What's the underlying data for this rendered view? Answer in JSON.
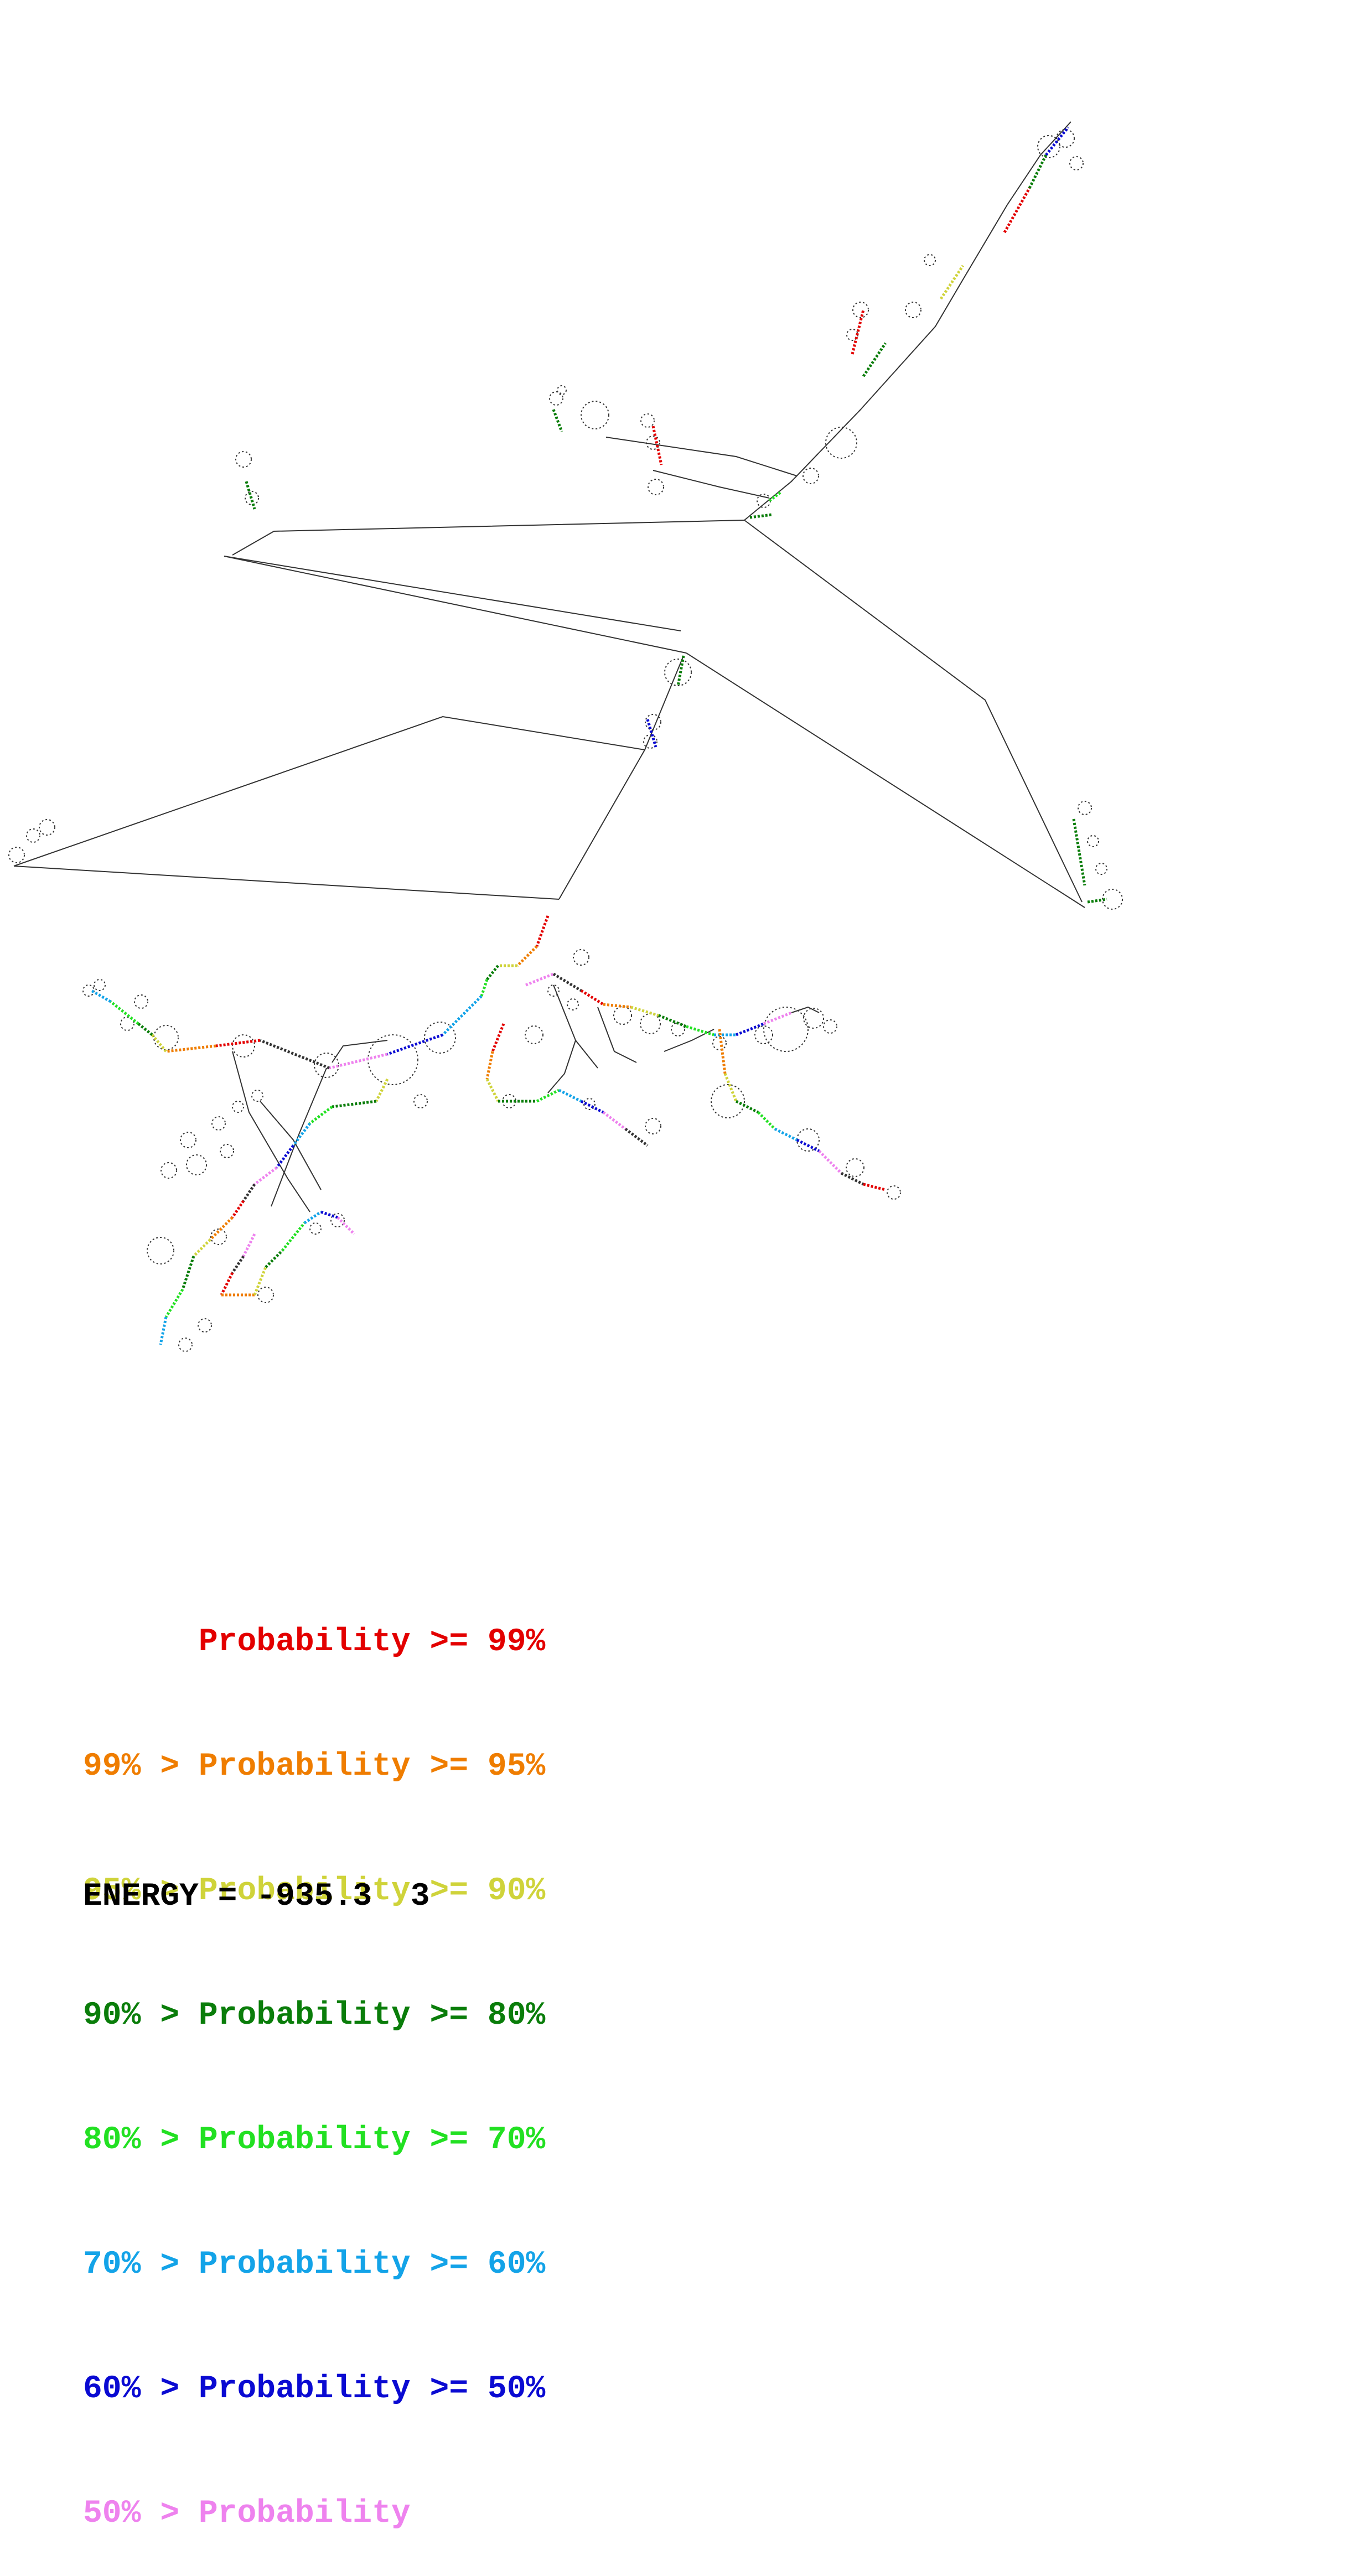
{
  "legend": [
    {
      "prefix": "      ",
      "label": "Probability >= 99%",
      "color": "#e30000"
    },
    {
      "prefix": "99% > ",
      "label": "Probability >= 95%",
      "color": "#ef7d00"
    },
    {
      "prefix": "95% > ",
      "label": "Probability >= 90%",
      "color": "#cfd33a"
    },
    {
      "prefix": "90% > ",
      "label": "Probability >= 80%",
      "color": "#0a7d0a"
    },
    {
      "prefix": "80% > ",
      "label": "Probability >= 70%",
      "color": "#22e022"
    },
    {
      "prefix": "70% > ",
      "label": "Probability >= 60%",
      "color": "#13a3e8"
    },
    {
      "prefix": "60% > ",
      "label": "Probability >= 50%",
      "color": "#0a0ad2"
    },
    {
      "prefix": "50% > ",
      "label": "Probability",
      "color": "#ee82ee"
    }
  ],
  "energy": {
    "text": "ENERGY = -935.3  3"
  }
}
